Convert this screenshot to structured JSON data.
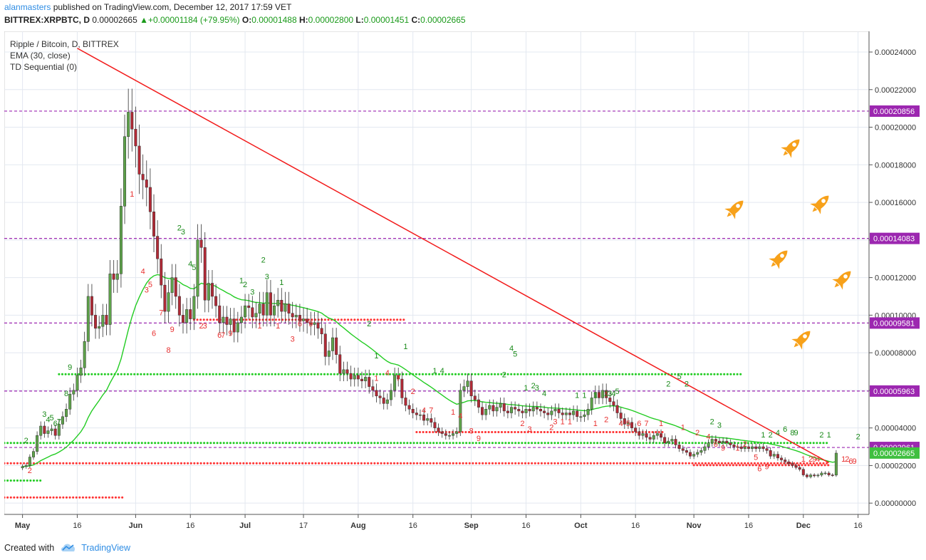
{
  "header": {
    "user": "alanmasters",
    "published_text": " published on TradingView.com, December 12, 2017 17:59 VET",
    "symbol": "BITTREX:XRPBTC, D",
    "last": "0.00002665",
    "arrow": "▲",
    "change": "+0.00001184 (+79.95%)",
    "o_label": "O:",
    "o_value": "0.00001488",
    "h_label": "H:",
    "h_value": "0.00002800",
    "l_label": "L:",
    "l_value": "0.00001451",
    "c_label": "C:",
    "c_value": "0.00002665"
  },
  "legend": {
    "title": "Ripple / Bitcoin, D, BITTREX",
    "indicator1": "EMA (30, close)",
    "indicator2": "TD Sequential (0)"
  },
  "footer": {
    "created_with": "Created with",
    "brand": "TradingView",
    "logo_icon": "tradingview-cloud-icon"
  },
  "chart_data": {
    "type": "candlestick",
    "title": "Ripple / Bitcoin, D, BITTREX",
    "y_ticks": [
      "0.00024000",
      "0.00022000",
      "0.00020000",
      "0.00018000",
      "0.00016000",
      "0.00014000",
      "0.00012000",
      "0.00010000",
      "0.00008000",
      "0.00006000",
      "0.00004000",
      "0.00002000",
      "0.00000000"
    ],
    "y_tick_values": [
      0.00024,
      0.00022,
      0.0002,
      0.00018,
      0.00016,
      0.00014,
      0.00012,
      0.0001,
      8e-05,
      6e-05,
      4e-05,
      2e-05,
      0
    ],
    "ylim": [
      -6e-06,
      0.000251
    ],
    "x_ticks": [
      "May",
      "16",
      "Jun",
      "16",
      "Jul",
      "17",
      "Aug",
      "16",
      "Sep",
      "16",
      "Oct",
      "16",
      "Nov",
      "16",
      "Dec",
      "16"
    ],
    "x_tick_days": [
      0,
      15,
      31,
      46,
      61,
      77,
      92,
      107,
      123,
      138,
      153,
      168,
      184,
      199,
      214,
      229
    ],
    "x_tick_bold": [
      true,
      false,
      true,
      false,
      true,
      false,
      true,
      false,
      true,
      false,
      true,
      false,
      true,
      false,
      true,
      false
    ],
    "xlim": [
      -5,
      232
    ],
    "price_levels": [
      {
        "label": "0.00020856",
        "value": 0.00020856
      },
      {
        "label": "0.00014083",
        "value": 0.00014083
      },
      {
        "label": "0.00009581",
        "value": 9.581e-05
      },
      {
        "label": "0.00005963",
        "value": 5.963e-05
      },
      {
        "label": "0.00002961",
        "value": 2.961e-05
      }
    ],
    "last_price": {
      "label": "0.00002665",
      "value": 2.665e-05
    },
    "trendline": {
      "from": [
        15,
        0.000242
      ],
      "to": [
        221,
        2.15e-05
      ]
    },
    "support_lines": [
      {
        "color": "#22cc22",
        "value": 6.86e-05,
        "from": 10,
        "to": 197
      },
      {
        "color": "#ff3333",
        "value": 9.76e-05,
        "from": 47,
        "to": 105
      },
      {
        "color": "#ff3333",
        "value": 3.78e-05,
        "from": 108,
        "to": 176
      },
      {
        "color": "#22cc22",
        "value": 1.2e-05,
        "from": -5,
        "to": 5
      },
      {
        "color": "#ff3333",
        "value": 3e-06,
        "from": -5,
        "to": 28
      },
      {
        "color": "#22cc22",
        "value": 3.2e-05,
        "from": -5,
        "to": 221
      },
      {
        "color": "#ff3333",
        "value": 2.12e-05,
        "from": -5,
        "to": 221
      },
      {
        "color": "#ff3333",
        "value": 2.02e-05,
        "from": 184,
        "to": 221
      }
    ],
    "close": [
      1.95e-05,
      2e-05,
      2.45e-05,
      2.75e-05,
      3.6e-05,
      4.1e-05,
      3.7e-05,
      3.85e-05,
      3.95e-05,
      3.6e-05,
      4.2e-05,
      4.6e-05,
      5e-05,
      5.8e-05,
      6e-05,
      6.8e-05,
      7.2e-05,
      8.6e-05,
      0.00011,
      0.0001,
      9.3e-05,
      9.4e-05,
      0.0001,
      9.5e-05,
      0.000122,
      0.000119,
      0.000122,
      0.000158,
      0.000195,
      0.000208,
      0.000199,
      0.00019,
      0.000175,
      0.000172,
      0.000168,
      0.000155,
      0.000142,
      0.00013,
      0.000116,
      0.000102,
      0.000112,
      0.00012,
      0.00011,
      0.0001,
      9.6e-05,
      0.000103,
      9.8e-05,
      0.00011,
      0.00014,
      0.000136,
      0.000108,
      0.000117,
      0.00011,
      0.000105,
      9.6e-05,
      9.9e-05,
      9.5e-05,
      9.8e-05,
      9.1e-05,
      9.6e-05,
      9.9e-05,
      0.000105,
      0.000104,
      9.9e-05,
      0.000101,
      0.000106,
      0.0001,
      0.000112,
      0.0001,
      0.000105,
      0.000108,
      0.000102,
      0.000106,
      0.000101,
      9.9e-05,
      0.0001,
      9.7e-05,
      9.8e-05,
      9.6e-05,
      9.5e-05,
      9.6e-05,
      9.3e-05,
      9e-05,
      7.8e-05,
      8.1e-05,
      8.8e-05,
      7.9e-05,
      6.9e-05,
      7.1e-05,
      6.9e-05,
      6.6e-05,
      6.8e-05,
      6.6e-05,
      6.5e-05,
      6.7e-05,
      6.2e-05,
      6e-05,
      5.7e-05,
      5.6e-05,
      5.3e-05,
      5.5e-05,
      6e-05,
      6.8e-05,
      6.6e-05,
      5.6e-05,
      5.2e-05,
      5e-05,
      4.8e-05,
      4.7e-05,
      4.7e-05,
      4.4e-05,
      4.5e-05,
      4.3e-05,
      4e-05,
      3.8e-05,
      3.7e-05,
      3.6e-05,
      3.6e-05,
      3.7e-05,
      3.8e-05,
      6e-05,
      6.2e-05,
      6.5e-05,
      5.7e-05,
      5.5e-05,
      5.1e-05,
      4.7e-05,
      5e-05,
      5.2e-05,
      4.9e-05,
      5.1e-05,
      5.3e-05,
      4.9e-05,
      4.8e-05,
      5.1e-05,
      5e-05,
      4.9e-05,
      4.8e-05,
      5e-05,
      4.9e-05,
      5.1e-05,
      5e-05,
      4.9e-05,
      4.8e-05,
      4.7e-05,
      4.9e-05,
      5e-05,
      4.8e-05,
      4.7e-05,
      4.8e-05,
      4.7e-05,
      4.9e-05,
      4.6e-05,
      4.6e-05,
      4.7e-05,
      5e-05,
      5.6e-05,
      5.9e-05,
      5.6e-05,
      6e-05,
      5.6e-05,
      5.4e-05,
      5.2e-05,
      4.8e-05,
      4.5e-05,
      4.2e-05,
      4.3e-05,
      4e-05,
      3.8e-05,
      3.6e-05,
      3.7e-05,
      3.5e-05,
      3.4e-05,
      3.6e-05,
      3.7e-05,
      3.5e-05,
      3.2e-05,
      3.3e-05,
      3.4e-05,
      3.1e-05,
      2.9e-05,
      2.8e-05,
      2.7e-05,
      2.5e-05,
      2.6e-05,
      2.7e-05,
      2.8e-05,
      3e-05,
      3.2e-05,
      3.4e-05,
      3.3e-05,
      3.2e-05,
      3.3e-05,
      3.2e-05,
      3.1e-05,
      3e-05,
      3e-05,
      2.9e-05,
      3e-05,
      2.9e-05,
      3e-05,
      2.9e-05,
      3e-05,
      2.9e-05,
      2.8e-05,
      2.5e-05,
      2.6e-05,
      2.4e-05,
      2.3e-05,
      2.2e-05,
      2.1e-05,
      2e-05,
      1.9e-05,
      1.8e-05,
      1.5e-05,
      1.4e-05,
      1.5e-05,
      1.45e-05,
      1.49e-05,
      1.6e-05,
      1.6e-05,
      1.5e-05,
      1.49e-05,
      2.66e-05
    ],
    "series": [
      {
        "name": "XRPBTC",
        "kind": "candles"
      },
      {
        "name": "EMA (30, close)",
        "kind": "line",
        "color": "#22cc22"
      }
    ],
    "td_counts": [
      {
        "day": 1,
        "label": "2",
        "color": "#1a8a1a",
        "value": 3.2e-05
      },
      {
        "day": 2,
        "label": "2",
        "color": "#e83030",
        "value": 1.6e-05
      },
      {
        "day": 6,
        "label": "3",
        "color": "#1a8a1a",
        "value": 4.6e-05
      },
      {
        "day": 7,
        "label": "4",
        "color": "#1a8a1a",
        "value": 4.3e-05
      },
      {
        "day": 8,
        "label": "5",
        "color": "#1a8a1a",
        "value": 4.4e-05
      },
      {
        "day": 9,
        "label": "6",
        "color": "#1a8a1a",
        "value": 4.1e-05
      },
      {
        "day": 10,
        "label": "7",
        "color": "#1a8a1a",
        "value": 4.2e-05
      },
      {
        "day": 12,
        "label": "8",
        "color": "#1a8a1a",
        "value": 5.7e-05
      },
      {
        "day": 13,
        "label": "9",
        "color": "#1a8a1a",
        "value": 7.1e-05
      },
      {
        "day": 30,
        "label": "1",
        "color": "#e83030",
        "value": 0.000163
      },
      {
        "day": 34,
        "label": "3",
        "color": "#e83030",
        "value": 0.000112
      },
      {
        "day": 33,
        "label": "4",
        "color": "#e83030",
        "value": 0.000122
      },
      {
        "day": 35,
        "label": "5",
        "color": "#e83030",
        "value": 0.000115
      },
      {
        "day": 36,
        "label": "6",
        "color": "#e83030",
        "value": 8.9e-05
      },
      {
        "day": 38,
        "label": "7",
        "color": "#e83030",
        "value": 0.0001
      },
      {
        "day": 40,
        "label": "8",
        "color": "#e83030",
        "value": 8e-05
      },
      {
        "day": 41,
        "label": "9",
        "color": "#e83030",
        "value": 9.1e-05
      },
      {
        "day": 43,
        "label": "2",
        "color": "#1a8a1a",
        "value": 0.000145
      },
      {
        "day": 44,
        "label": "3",
        "color": "#1a8a1a",
        "value": 0.000143
      },
      {
        "day": 46,
        "label": "4",
        "color": "#1a8a1a",
        "value": 0.000126
      },
      {
        "day": 47,
        "label": "5",
        "color": "#1a8a1a",
        "value": 0.000124
      },
      {
        "day": 49,
        "label": "2",
        "color": "#e83030",
        "value": 9.3e-05
      },
      {
        "day": 50,
        "label": "3",
        "color": "#e83030",
        "value": 9.3e-05
      },
      {
        "day": 54,
        "label": "6",
        "color": "#e83030",
        "value": 8.8e-05
      },
      {
        "day": 55,
        "label": "7",
        "color": "#e83030",
        "value": 8.8e-05
      },
      {
        "day": 57,
        "label": "9",
        "color": "#e83030",
        "value": 8.9e-05
      },
      {
        "day": 60,
        "label": "1",
        "color": "#1a8a1a",
        "value": 0.000117
      },
      {
        "day": 61,
        "label": "2",
        "color": "#1a8a1a",
        "value": 0.000115
      },
      {
        "day": 63,
        "label": "3",
        "color": "#1a8a1a",
        "value": 0.000111
      },
      {
        "day": 66,
        "label": "2",
        "color": "#1a8a1a",
        "value": 0.000128
      },
      {
        "day": 67,
        "label": "3",
        "color": "#1a8a1a",
        "value": 0.000119
      },
      {
        "day": 71,
        "label": "1",
        "color": "#1a8a1a",
        "value": 0.000116
      },
      {
        "day": 65,
        "label": "1",
        "color": "#e83030",
        "value": 9.3e-05
      },
      {
        "day": 70,
        "label": "1",
        "color": "#e83030",
        "value": 9.3e-05
      },
      {
        "day": 74,
        "label": "3",
        "color": "#e83030",
        "value": 8.6e-05
      },
      {
        "day": 76,
        "label": "6",
        "color": "#e83030",
        "value": 9.4e-05
      },
      {
        "day": 79,
        "label": "9",
        "color": "#e83030",
        "value": 9.4e-05
      },
      {
        "day": 95,
        "label": "2",
        "color": "#1a8a1a",
        "value": 9.4e-05
      },
      {
        "day": 97,
        "label": "1",
        "color": "#1a8a1a",
        "value": 7.7e-05
      },
      {
        "day": 97,
        "label": "1",
        "color": "#e83030",
        "value": 6.5e-05
      },
      {
        "day": 100,
        "label": "4",
        "color": "#e83030",
        "value": 6.8e-05
      },
      {
        "day": 103,
        "label": "7",
        "color": "#e83030",
        "value": 6.5e-05
      },
      {
        "day": 105,
        "label": "1",
        "color": "#1a8a1a",
        "value": 8.2e-05
      },
      {
        "day": 107,
        "label": "2",
        "color": "#e83030",
        "value": 5.8e-05
      },
      {
        "day": 110,
        "label": "4",
        "color": "#e83030",
        "value": 4.8e-05
      },
      {
        "day": 112,
        "label": "7",
        "color": "#e83030",
        "value": 4.8e-05
      },
      {
        "day": 113,
        "label": "1",
        "color": "#1a8a1a",
        "value": 6.9e-05
      },
      {
        "day": 115,
        "label": "4",
        "color": "#1a8a1a",
        "value": 6.9e-05
      },
      {
        "day": 118,
        "label": "1",
        "color": "#e83030",
        "value": 4.7e-05
      },
      {
        "day": 120,
        "label": "4",
        "color": "#e83030",
        "value": 4.5e-05
      },
      {
        "day": 123,
        "label": "8",
        "color": "#e83030",
        "value": 3.7e-05
      },
      {
        "day": 125,
        "label": "9",
        "color": "#e83030",
        "value": 3.3e-05
      },
      {
        "day": 132,
        "label": "2",
        "color": "#1a8a1a",
        "value": 6.7e-05
      },
      {
        "day": 134,
        "label": "4",
        "color": "#1a8a1a",
        "value": 8.1e-05
      },
      {
        "day": 135,
        "label": "5",
        "color": "#1a8a1a",
        "value": 7.8e-05
      },
      {
        "day": 138,
        "label": "1",
        "color": "#1a8a1a",
        "value": 6e-05
      },
      {
        "day": 140,
        "label": "2",
        "color": "#1a8a1a",
        "value": 6.1e-05
      },
      {
        "day": 141,
        "label": "3",
        "color": "#1a8a1a",
        "value": 6e-05
      },
      {
        "day": 143,
        "label": "4",
        "color": "#1a8a1a",
        "value": 5.7e-05
      },
      {
        "day": 137,
        "label": "2",
        "color": "#e83030",
        "value": 4.1e-05
      },
      {
        "day": 139,
        "label": "3",
        "color": "#e83030",
        "value": 3.8e-05
      },
      {
        "day": 145,
        "label": "2",
        "color": "#e83030",
        "value": 3.9e-05
      },
      {
        "day": 146,
        "label": "3",
        "color": "#e83030",
        "value": 4.2e-05
      },
      {
        "day": 148,
        "label": "1",
        "color": "#e83030",
        "value": 4.2e-05
      },
      {
        "day": 150,
        "label": "1",
        "color": "#e83030",
        "value": 4.2e-05
      },
      {
        "day": 152,
        "label": "1",
        "color": "#1a8a1a",
        "value": 5.6e-05
      },
      {
        "day": 154,
        "label": "1",
        "color": "#1a8a1a",
        "value": 5.6e-05
      },
      {
        "day": 157,
        "label": "1",
        "color": "#1a8a1a",
        "value": 5.6e-05
      },
      {
        "day": 160,
        "label": "2",
        "color": "#1a8a1a",
        "value": 5.7e-05
      },
      {
        "day": 161,
        "label": "3",
        "color": "#1a8a1a",
        "value": 5.7e-05
      },
      {
        "day": 162,
        "label": "4",
        "color": "#1a8a1a",
        "value": 5.7e-05
      },
      {
        "day": 163,
        "label": "5",
        "color": "#1a8a1a",
        "value": 5.8e-05
      },
      {
        "day": 157,
        "label": "1",
        "color": "#e83030",
        "value": 4.1e-05
      },
      {
        "day": 160,
        "label": "2",
        "color": "#e83030",
        "value": 4.3e-05
      },
      {
        "day": 164,
        "label": "4",
        "color": "#e83030",
        "value": 4.1e-05
      },
      {
        "day": 166,
        "label": "5",
        "color": "#e83030",
        "value": 4.1e-05
      },
      {
        "day": 169,
        "label": "6",
        "color": "#e83030",
        "value": 4.1e-05
      },
      {
        "day": 171,
        "label": "7",
        "color": "#e83030",
        "value": 4.1e-05
      },
      {
        "day": 175,
        "label": "1",
        "color": "#e83030",
        "value": 4.1e-05
      },
      {
        "day": 177,
        "label": "2",
        "color": "#1a8a1a",
        "value": 6.2e-05
      },
      {
        "day": 180,
        "label": "5",
        "color": "#1a8a1a",
        "value": 6.6e-05
      },
      {
        "day": 182,
        "label": "2",
        "color": "#1a8a1a",
        "value": 6.2e-05
      },
      {
        "day": 181,
        "label": "1",
        "color": "#e83030",
        "value": 3.9e-05
      },
      {
        "day": 185,
        "label": "2",
        "color": "#e83030",
        "value": 3.6e-05
      },
      {
        "day": 188,
        "label": "4",
        "color": "#e83030",
        "value": 3.4e-05
      },
      {
        "day": 190,
        "label": "6",
        "color": "#e83030",
        "value": 3e-05
      },
      {
        "day": 192,
        "label": "9",
        "color": "#e83030",
        "value": 2.8e-05
      },
      {
        "day": 189,
        "label": "2",
        "color": "#1a8a1a",
        "value": 4.2e-05
      },
      {
        "day": 191,
        "label": "3",
        "color": "#1a8a1a",
        "value": 4e-05
      },
      {
        "day": 196,
        "label": "1",
        "color": "#e83030",
        "value": 2.8e-05
      },
      {
        "day": 198,
        "label": "2",
        "color": "#e83030",
        "value": 3e-05
      },
      {
        "day": 201,
        "label": "5",
        "color": "#e83030",
        "value": 2.3e-05
      },
      {
        "day": 202,
        "label": "6",
        "color": "#e83030",
        "value": 1.7e-05
      },
      {
        "day": 204,
        "label": "9",
        "color": "#e83030",
        "value": 1.8e-05
      },
      {
        "day": 203,
        "label": "1",
        "color": "#1a8a1a",
        "value": 3.5e-05
      },
      {
        "day": 205,
        "label": "2",
        "color": "#1a8a1a",
        "value": 3.5e-05
      },
      {
        "day": 207,
        "label": "4",
        "color": "#1a8a1a",
        "value": 3.6e-05
      },
      {
        "day": 209,
        "label": "6",
        "color": "#1a8a1a",
        "value": 3.8e-05
      },
      {
        "day": 211,
        "label": "8",
        "color": "#1a8a1a",
        "value": 3.6e-05
      },
      {
        "day": 212,
        "label": "9",
        "color": "#1a8a1a",
        "value": 3.6e-05
      },
      {
        "day": 214,
        "label": "1",
        "color": "#e83030",
        "value": 2.2e-05
      },
      {
        "day": 216,
        "label": "2",
        "color": "#e83030",
        "value": 2.2e-05
      },
      {
        "day": 217,
        "label": "9",
        "color": "#e83030",
        "value": 2.2e-05
      },
      {
        "day": 218,
        "label": "4",
        "color": "#e83030",
        "value": 2.2e-05
      },
      {
        "day": 219,
        "label": "2",
        "color": "#1a8a1a",
        "value": 3.5e-05
      },
      {
        "day": 221,
        "label": "1",
        "color": "#1a8a1a",
        "value": 3.5e-05
      },
      {
        "day": 225,
        "label": "1",
        "color": "#e83030",
        "value": 2.2e-05
      },
      {
        "day": 226,
        "label": "2",
        "color": "#e83030",
        "value": 2.2e-05
      },
      {
        "day": 227,
        "label": "6",
        "color": "#e83030",
        "value": 2.1e-05
      },
      {
        "day": 228,
        "label": "9",
        "color": "#e83030",
        "value": 2.1e-05
      },
      {
        "day": 229,
        "label": "2",
        "color": "#1a8a1a",
        "value": 3.4e-05
      }
    ]
  },
  "colors": {
    "up": "#5ea34a",
    "down": "#b22a36",
    "level_line": "#9c27b0",
    "trendline": "#f21a1a",
    "ema": "#22cc22",
    "rocket": "#f7a11a"
  },
  "rockets": [
    {
      "name": "rocket-icon"
    },
    {
      "name": "rocket-icon"
    },
    {
      "name": "rocket-icon"
    },
    {
      "name": "rocket-icon"
    },
    {
      "name": "rocket-icon"
    },
    {
      "name": "rocket-icon"
    }
  ]
}
